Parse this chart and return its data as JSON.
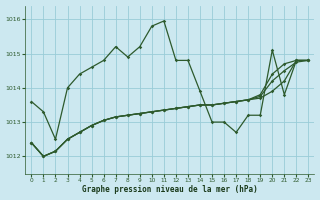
{
  "title": "Graphe pression niveau de la mer (hPa)",
  "bg_color": "#cce8f0",
  "grid_color": "#99ccd8",
  "line_color": "#2d5a2d",
  "xlim": [
    -0.5,
    23.5
  ],
  "ylim": [
    1011.5,
    1016.4
  ],
  "yticks": [
    1012,
    1013,
    1014,
    1015,
    1016
  ],
  "xticks": [
    0,
    1,
    2,
    3,
    4,
    5,
    6,
    7,
    8,
    9,
    10,
    11,
    12,
    13,
    14,
    15,
    16,
    17,
    18,
    19,
    20,
    21,
    22,
    23
  ],
  "series1": [
    1013.6,
    1013.3,
    1012.5,
    1014.0,
    1014.4,
    1014.6,
    1014.8,
    1015.2,
    1014.9,
    1015.2,
    1015.8,
    1015.95,
    1014.8,
    1014.8,
    1013.9,
    1013.0,
    1013.0,
    1012.7,
    1013.2,
    1013.2,
    1015.1,
    1013.8,
    1014.8,
    1014.8
  ],
  "series2": [
    1012.4,
    1012.0,
    1012.15,
    1012.5,
    1012.7,
    1012.9,
    1013.05,
    1013.15,
    1013.2,
    1013.25,
    1013.3,
    1013.35,
    1013.4,
    1013.45,
    1013.5,
    1013.5,
    1013.55,
    1013.6,
    1013.65,
    1013.7,
    1013.9,
    1014.2,
    1014.8,
    1014.8
  ],
  "series3": [
    1012.4,
    1012.0,
    1012.15,
    1012.5,
    1012.7,
    1012.9,
    1013.05,
    1013.15,
    1013.2,
    1013.25,
    1013.3,
    1013.35,
    1013.4,
    1013.45,
    1013.5,
    1013.5,
    1013.55,
    1013.6,
    1013.65,
    1013.75,
    1014.2,
    1014.5,
    1014.75,
    1014.8
  ],
  "series4": [
    1012.4,
    1012.0,
    1012.15,
    1012.5,
    1012.7,
    1012.9,
    1013.05,
    1013.15,
    1013.2,
    1013.25,
    1013.3,
    1013.35,
    1013.4,
    1013.45,
    1013.5,
    1013.5,
    1013.55,
    1013.6,
    1013.65,
    1013.8,
    1014.4,
    1014.7,
    1014.8,
    1014.8
  ]
}
